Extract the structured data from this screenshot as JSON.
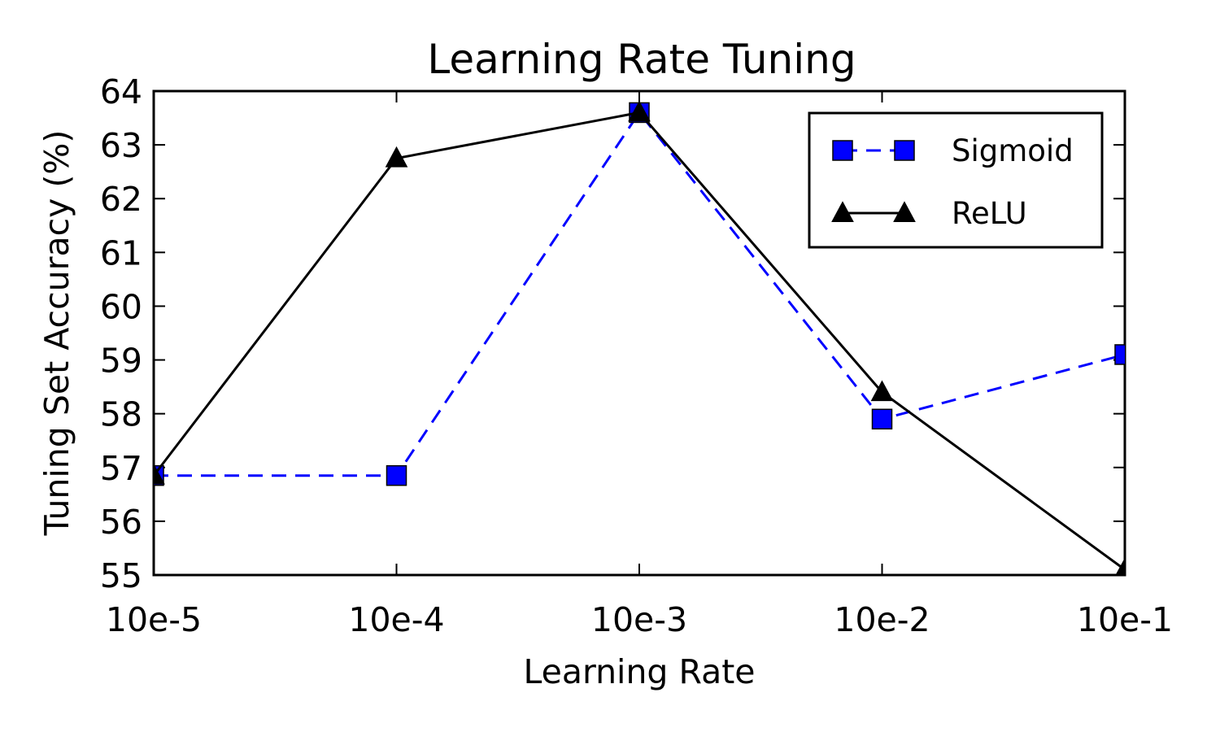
{
  "chart_data": {
    "type": "line",
    "title": "Learning Rate Tuning",
    "xlabel": "Learning Rate",
    "ylabel": "Tuning Set Accuracy (%)",
    "categories": [
      "10e-5",
      "10e-4",
      "10e-3",
      "10e-2",
      "10e-1"
    ],
    "ylim": [
      55,
      64
    ],
    "yticks": [
      55,
      56,
      57,
      58,
      59,
      60,
      61,
      62,
      63,
      64
    ],
    "grid": false,
    "legend_position": "top-right",
    "series": [
      {
        "name": "Sigmoid",
        "values": [
          56.85,
          56.85,
          63.6,
          57.9,
          59.1
        ],
        "color": "#0000ff",
        "line_style": "dashed",
        "marker": "square"
      },
      {
        "name": "ReLU",
        "values": [
          56.85,
          62.75,
          63.6,
          58.4,
          55.1
        ],
        "color": "#000000",
        "line_style": "solid",
        "marker": "triangle"
      }
    ]
  }
}
